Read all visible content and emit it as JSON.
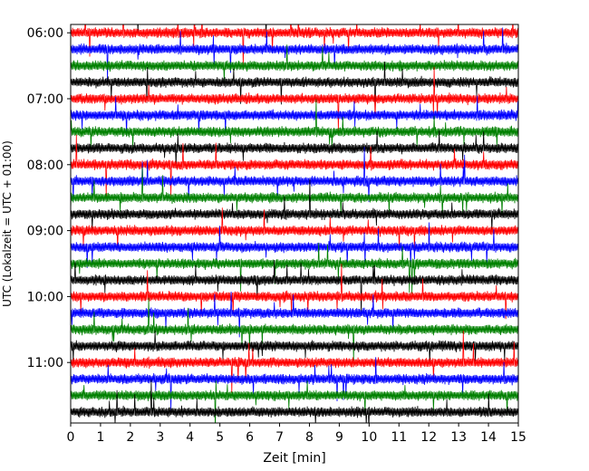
{
  "chart_data": {
    "type": "line",
    "title": "",
    "xlabel": "Zeit  [min]",
    "ylabel": "UTC (Lokalzeit = UTC + 01:00)",
    "xlim": [
      0,
      15
    ],
    "x_ticks": [
      "0",
      "1",
      "2",
      "3",
      "4",
      "5",
      "6",
      "7",
      "8",
      "9",
      "10",
      "11",
      "12",
      "13",
      "14",
      "15"
    ],
    "y_ticks": [
      "06:00",
      "07:00",
      "08:00",
      "09:00",
      "10:00",
      "11:00"
    ],
    "row_start": "05:45",
    "row_interval_min": 15,
    "row_count": 25,
    "color_cycle": [
      "#000000",
      "#ff0000",
      "#0000ff",
      "#008000"
    ],
    "grid": false,
    "legend": "none"
  }
}
